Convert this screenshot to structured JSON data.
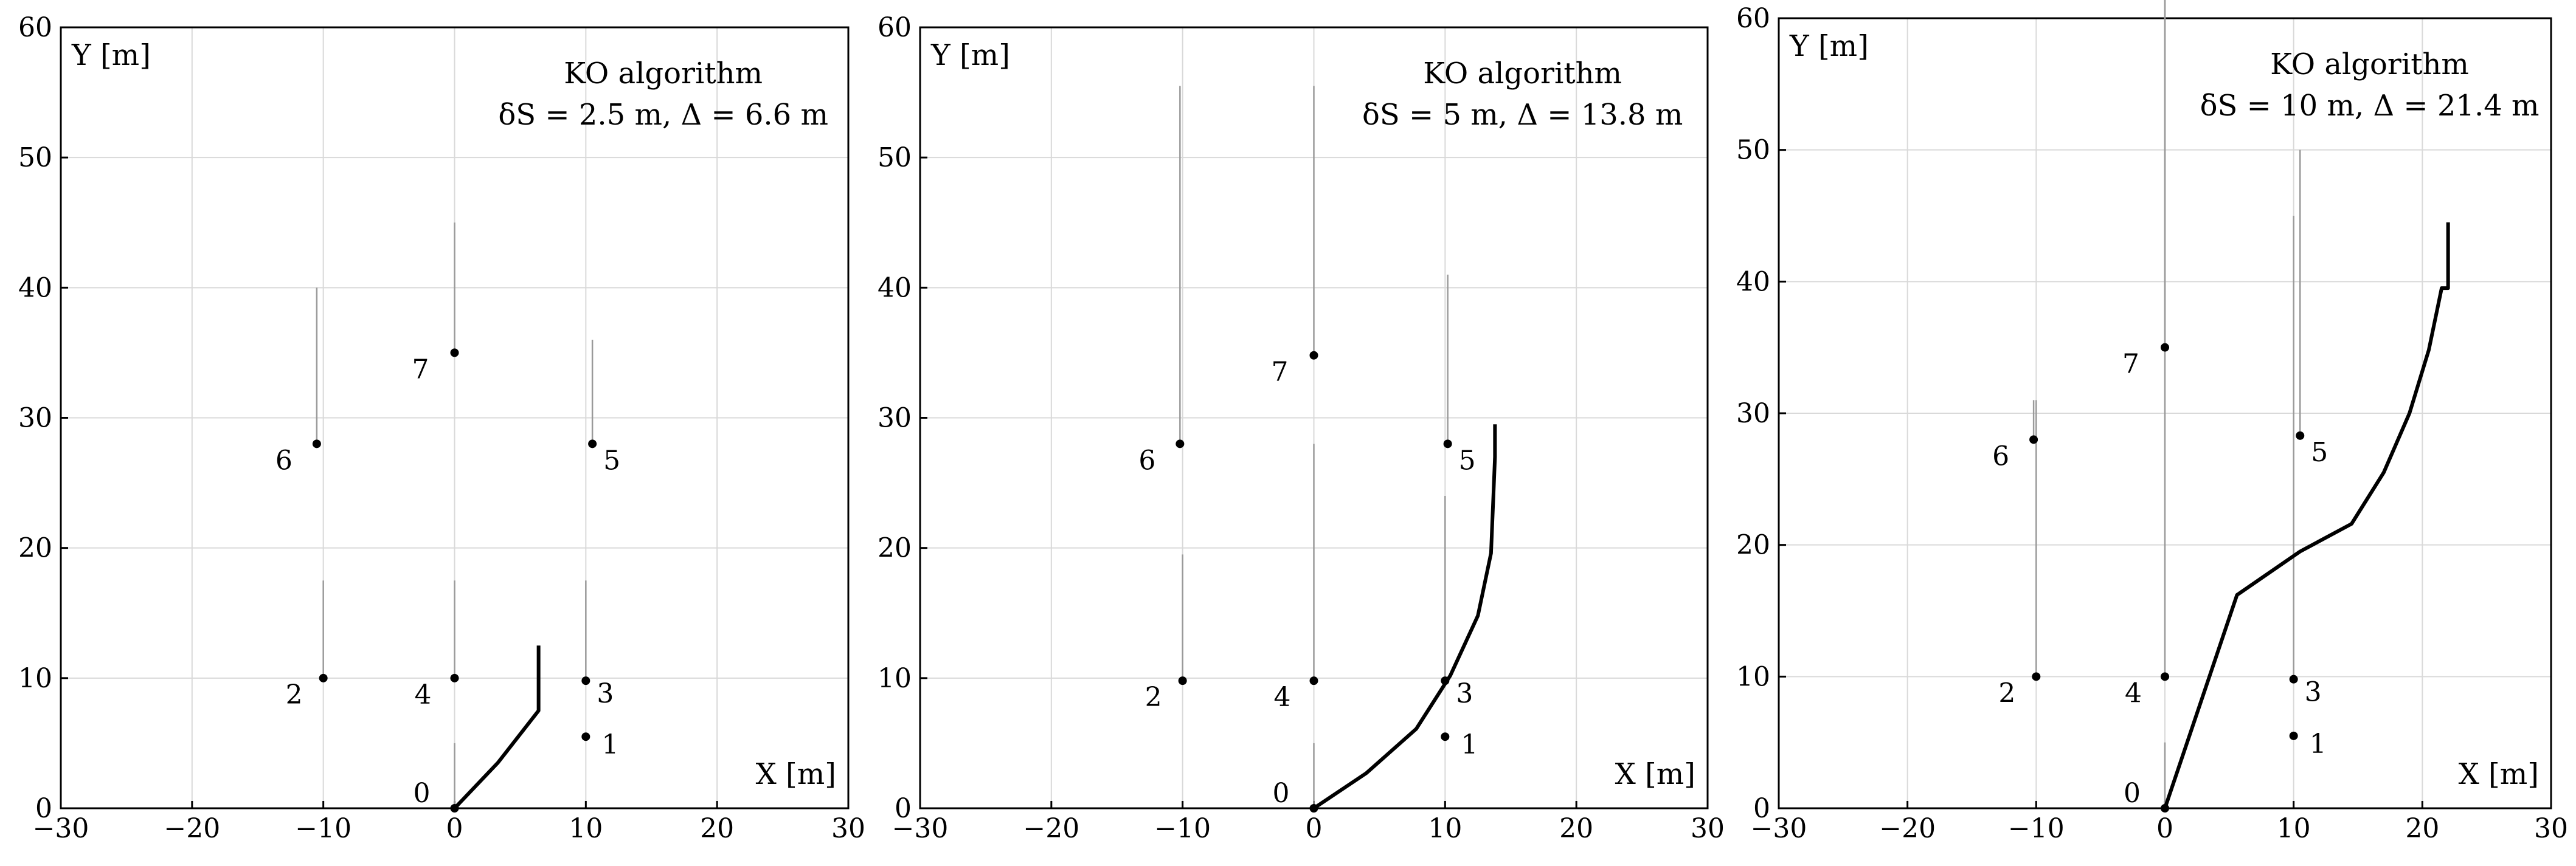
{
  "colors": {
    "path": "#000000",
    "trail": "#9a9a9a",
    "grid": "#d9d9d9",
    "point": "#000000"
  },
  "chart_data": [
    {
      "type": "line",
      "title": "KO algorithm",
      "subtitle": "δS = 2.5 m, Δ = 6.6 m",
      "xlabel": "X [m]",
      "ylabel": "Y [m]",
      "xlim": [
        -30,
        30
      ],
      "ylim": [
        0,
        60
      ],
      "xticks": [
        -30,
        -20,
        -10,
        0,
        10,
        20,
        30
      ],
      "yticks": [
        0,
        10,
        20,
        30,
        40,
        50,
        60
      ],
      "grid": true,
      "points": [
        {
          "label": "0",
          "x": 0,
          "y": 0
        },
        {
          "label": "1",
          "x": 10,
          "y": 5.5
        },
        {
          "label": "2",
          "x": -10,
          "y": 10
        },
        {
          "label": "3",
          "x": 10,
          "y": 9.8
        },
        {
          "label": "4",
          "x": 0,
          "y": 10
        },
        {
          "label": "5",
          "x": 10.5,
          "y": 28
        },
        {
          "label": "6",
          "x": -10.5,
          "y": 28
        },
        {
          "label": "7",
          "x": 0,
          "y": 35
        }
      ],
      "path": {
        "x": [
          0,
          3.3,
          6.4,
          6.4
        ],
        "y": [
          0,
          3.5,
          7.5,
          12.5
        ]
      },
      "trails": [
        {
          "x": -10,
          "y": [
            10,
            17.5
          ]
        },
        {
          "x": 0,
          "y": [
            10,
            17.5
          ]
        },
        {
          "x": 10,
          "y": [
            9.8,
            17.5
          ]
        },
        {
          "x": 10.5,
          "y": [
            28,
            36
          ]
        },
        {
          "x": -10.5,
          "y": [
            28,
            40
          ]
        },
        {
          "x": 0,
          "y": [
            35,
            45
          ]
        },
        {
          "x": 0,
          "y": [
            0,
            5
          ]
        }
      ]
    },
    {
      "type": "line",
      "title": "KO algorithm",
      "subtitle": "δS = 5 m, Δ = 13.8 m",
      "xlabel": "X [m]",
      "ylabel": "Y [m]",
      "xlim": [
        -30,
        30
      ],
      "ylim": [
        0,
        60
      ],
      "xticks": [
        -30,
        -20,
        -10,
        0,
        10,
        20,
        30
      ],
      "yticks": [
        0,
        10,
        20,
        30,
        40,
        50,
        60
      ],
      "grid": true,
      "points": [
        {
          "label": "0",
          "x": 0,
          "y": 0
        },
        {
          "label": "1",
          "x": 10,
          "y": 5.5
        },
        {
          "label": "2",
          "x": -10,
          "y": 9.8
        },
        {
          "label": "3",
          "x": 10,
          "y": 9.8
        },
        {
          "label": "4",
          "x": 0,
          "y": 9.8
        },
        {
          "label": "5",
          "x": 10.2,
          "y": 28
        },
        {
          "label": "6",
          "x": -10.2,
          "y": 28
        },
        {
          "label": "7",
          "x": 0,
          "y": 34.8
        }
      ],
      "path": {
        "x": [
          0,
          4,
          7.8,
          10.4,
          12.5,
          13.5,
          13.7,
          13.8,
          13.8
        ],
        "y": [
          0,
          2.7,
          6.1,
          10.2,
          14.8,
          19.6,
          24.5,
          27,
          29.5
        ]
      },
      "trails": [
        {
          "x": -10,
          "y": [
            9.8,
            19.5
          ]
        },
        {
          "x": 0,
          "y": [
            9.8,
            28
          ]
        },
        {
          "x": 10,
          "y": [
            9.8,
            24
          ]
        },
        {
          "x": 10.2,
          "y": [
            28,
            41
          ]
        },
        {
          "x": -10.2,
          "y": [
            28,
            55.5
          ]
        },
        {
          "x": 0,
          "y": [
            34.8,
            55.5
          ]
        },
        {
          "x": 0,
          "y": [
            0,
            5
          ]
        }
      ]
    },
    {
      "type": "line",
      "title": "KO algorithm",
      "subtitle": "δS = 10 m, Δ = 21.4 m",
      "xlabel": "X [m]",
      "ylabel": "Y [m]",
      "xlim": [
        -30,
        30
      ],
      "ylim": [
        0,
        60
      ],
      "xticks": [
        -30,
        -20,
        -10,
        0,
        10,
        20,
        30
      ],
      "yticks": [
        0,
        10,
        20,
        30,
        40,
        50,
        60
      ],
      "grid": true,
      "points": [
        {
          "label": "0",
          "x": 0,
          "y": 0
        },
        {
          "label": "1",
          "x": 10,
          "y": 5.5
        },
        {
          "label": "2",
          "x": -10,
          "y": 10
        },
        {
          "label": "3",
          "x": 10,
          "y": 9.8
        },
        {
          "label": "4",
          "x": 0,
          "y": 10
        },
        {
          "label": "5",
          "x": 10.5,
          "y": 28.3
        },
        {
          "label": "6",
          "x": -10.2,
          "y": 28
        },
        {
          "label": "7",
          "x": 0,
          "y": 35
        }
      ],
      "path": {
        "x": [
          0,
          5.6,
          10.5,
          14.5,
          17,
          19,
          20.5,
          21.5,
          22,
          22
        ],
        "y": [
          0,
          16.2,
          19.5,
          21.6,
          25.5,
          30,
          34.8,
          39.5,
          39.5,
          44.5
        ]
      },
      "trails": [
        {
          "x": -10,
          "y": [
            10,
            31
          ]
        },
        {
          "x": 0,
          "y": [
            10,
            62
          ]
        },
        {
          "x": 10,
          "y": [
            9.8,
            45
          ]
        },
        {
          "x": 10.5,
          "y": [
            28.3,
            50
          ]
        },
        {
          "x": -10.2,
          "y": [
            28,
            31
          ]
        },
        {
          "x": 0,
          "y": [
            35,
            62
          ]
        },
        {
          "x": 0,
          "y": [
            0,
            5
          ]
        }
      ]
    }
  ]
}
